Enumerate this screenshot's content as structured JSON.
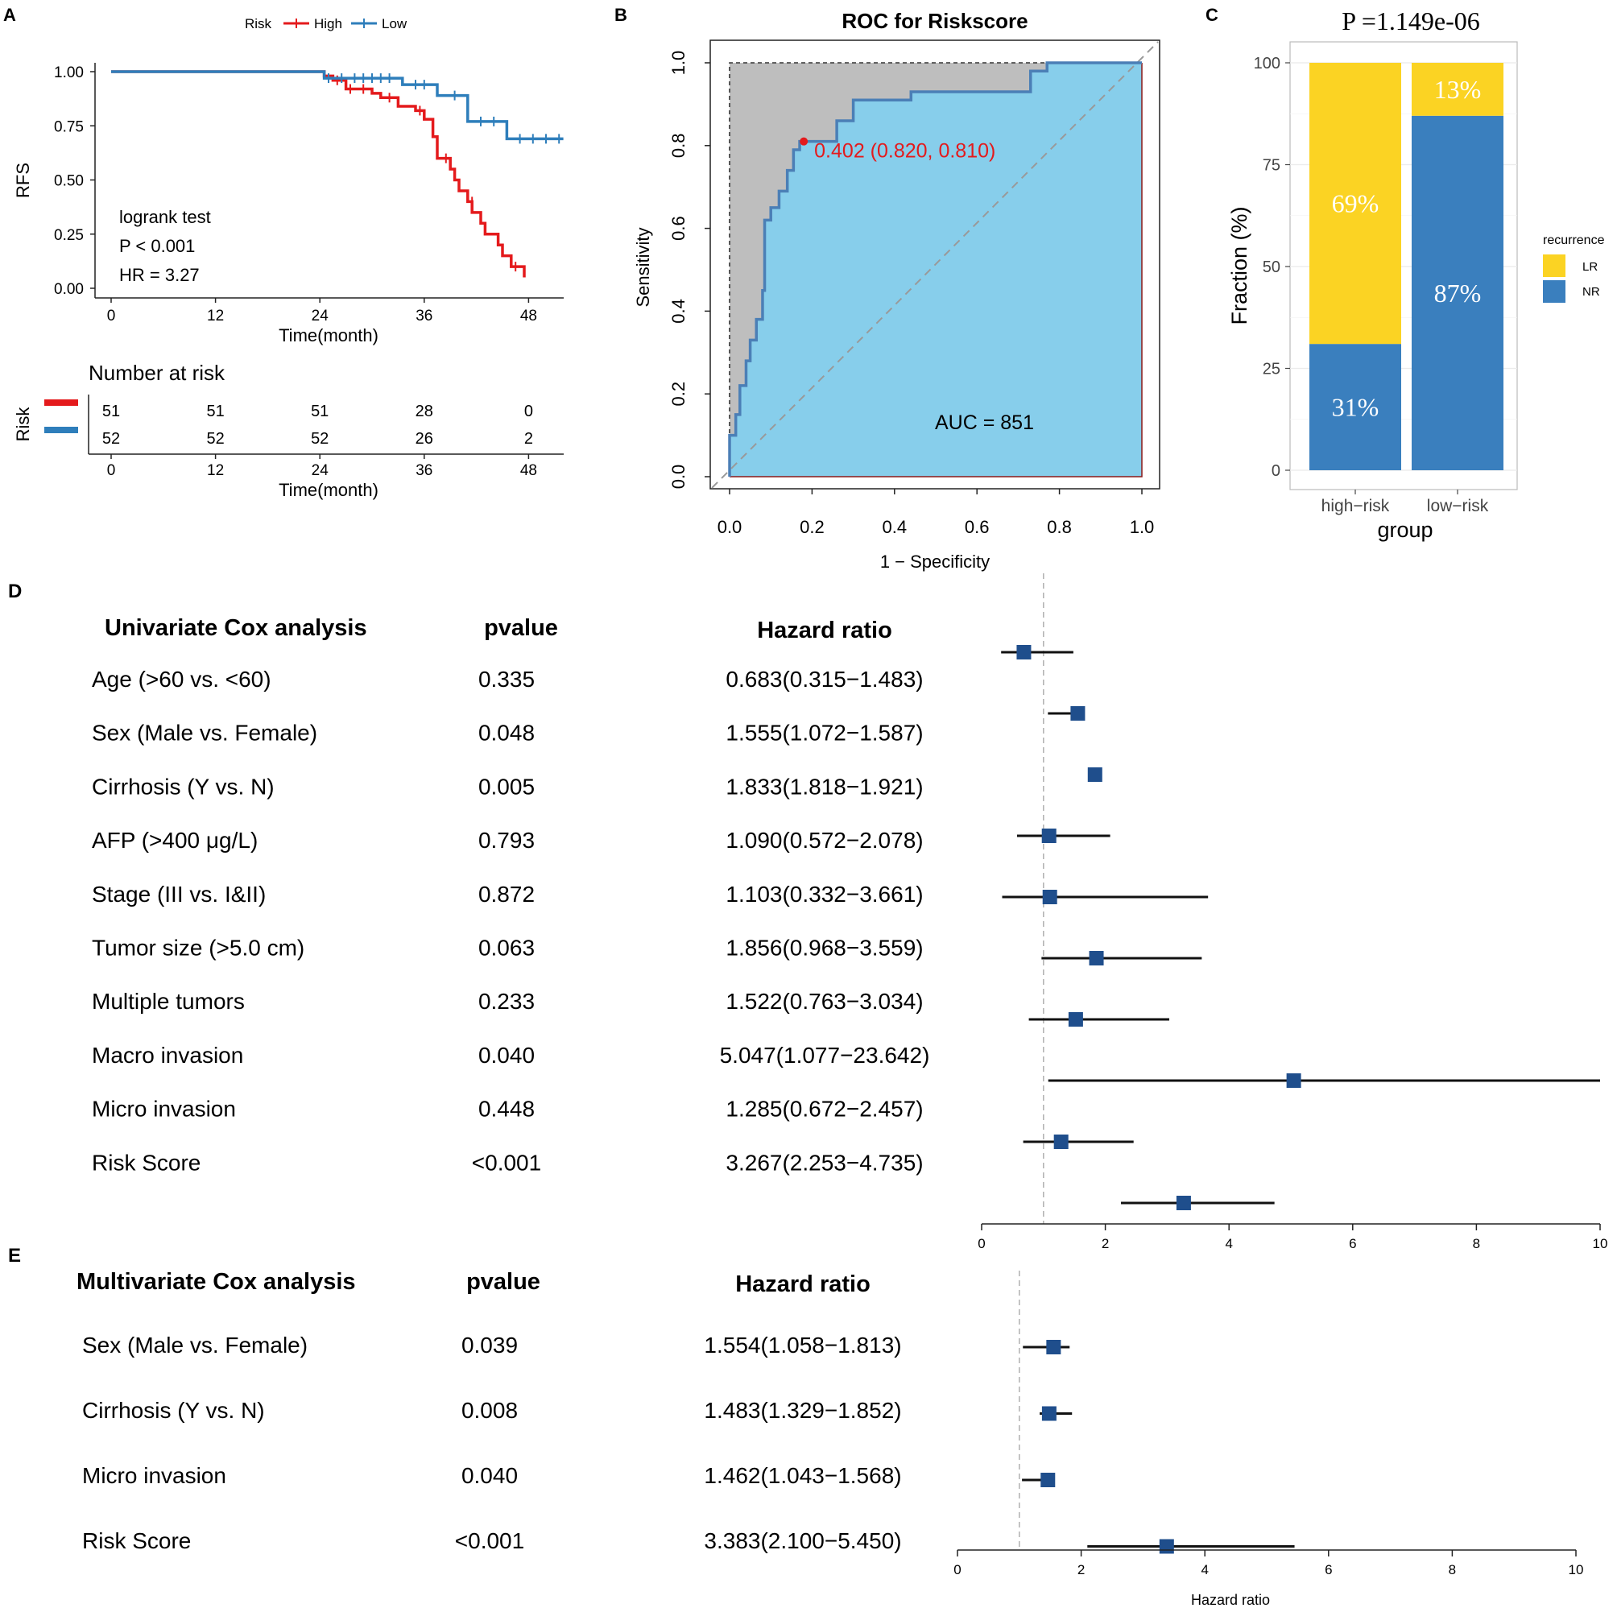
{
  "panels": {
    "A": {
      "letter": "A",
      "legend_title": "Risk",
      "legend_high": "High",
      "legend_low": "Low",
      "ylabel": "RFS",
      "xlabel": "Time(month)",
      "yticks": [
        "1.00",
        "0.75",
        "0.50",
        "0.25",
        "0.00"
      ],
      "xticks": [
        "0",
        "12",
        "24",
        "36",
        "48"
      ],
      "test_label": "logrank test",
      "p_label": "P < 0.001",
      "hr_label": "HR = 3.27",
      "risk_table_title": "Number at risk",
      "risk_table_ylabel": "Risk",
      "risk_high": [
        "51",
        "51",
        "51",
        "28",
        "0"
      ],
      "risk_low": [
        "52",
        "52",
        "52",
        "26",
        "2"
      ],
      "risk_xlabel": "Time(month)",
      "colors": {
        "high": "#e41a1c",
        "low": "#2e7ebb"
      }
    },
    "B": {
      "letter": "B",
      "title": "ROC for Riskscore",
      "xlabel": "1 − Specificity",
      "ylabel": "Sensitivity",
      "ticks": [
        "0.0",
        "0.2",
        "0.4",
        "0.6",
        "0.8",
        "1.0"
      ],
      "cutoff_label": "0.402 (0.820, 0.810)",
      "auc_label": "AUC = 851"
    },
    "C": {
      "letter": "C",
      "title": "P =1.149e-06",
      "ylabel": "Fraction (%)",
      "xlabel": "group",
      "yticks": [
        "100",
        "75",
        "50",
        "25",
        "0"
      ],
      "legend_title": "recurrence",
      "legend_lr": "LR",
      "legend_nr": "NR",
      "colors": {
        "lr": "#fbd323",
        "nr": "#3a7fbe"
      }
    },
    "D": {
      "letter": "D",
      "heading": "Univariate Cox analysis",
      "pvalue_heading": "pvalue",
      "hr_heading": "Hazard ratio",
      "rows": [
        {
          "label": "Age (>60 vs. <60)",
          "pvalue": "0.335",
          "hr_text": "0.683(0.315−1.483)"
        },
        {
          "label": "Sex (Male vs. Female)",
          "pvalue": "0.048",
          "hr_text": "1.555(1.072−1.587)"
        },
        {
          "label": "Cirrhosis (Y vs. N)",
          "pvalue": "0.005",
          "hr_text": "1.833(1.818−1.921)"
        },
        {
          "label": "AFP (>400 μg/L)",
          "pvalue": "0.793",
          "hr_text": "1.090(0.572−2.078)"
        },
        {
          "label": "Stage (III vs. I&II)",
          "pvalue": "0.872",
          "hr_text": "1.103(0.332−3.661)"
        },
        {
          "label": "Tumor size (>5.0 cm)",
          "pvalue": "0.063",
          "hr_text": "1.856(0.968−3.559)"
        },
        {
          "label": "Multiple tumors",
          "pvalue": "0.233",
          "hr_text": "1.522(0.763−3.034)"
        },
        {
          "label": "Macro invasion",
          "pvalue": "0.040",
          "hr_text": "5.047(1.077−23.642)"
        },
        {
          "label": "Micro invasion",
          "pvalue": "0.448",
          "hr_text": "1.285(0.672−2.457)"
        },
        {
          "label": "Risk Score",
          "pvalue": "<0.001",
          "hr_text": "3.267(2.253−4.735)"
        }
      ],
      "axis_ticks": [
        "0",
        "2",
        "4",
        "6",
        "8",
        "10"
      ]
    },
    "E": {
      "letter": "E",
      "heading": "Multivariate Cox analysis",
      "pvalue_heading": "pvalue",
      "hr_heading": "Hazard ratio",
      "rows": [
        {
          "label": "Sex (Male vs. Female)",
          "pvalue": "0.039",
          "hr_text": "1.554(1.058−1.813)"
        },
        {
          "label": "Cirrhosis (Y vs. N)",
          "pvalue": "0.008",
          "hr_text": "1.483(1.329−1.852)"
        },
        {
          "label": "Micro invasion",
          "pvalue": "0.040",
          "hr_text": "1.462(1.043−1.568)"
        },
        {
          "label": "Risk Score",
          "pvalue": "<0.001",
          "hr_text": "3.383(2.100−5.450)"
        }
      ],
      "axis_ticks": [
        "0",
        "2",
        "4",
        "6",
        "8",
        "10"
      ],
      "xlabel": "Hazard ratio"
    }
  },
  "chart_data": [
    {
      "type": "line",
      "title": "",
      "xlabel": "Time(month)",
      "ylabel": "RFS",
      "xlim": [
        0,
        52
      ],
      "ylim": [
        0,
        1
      ],
      "series": [
        {
          "name": "High",
          "color": "#e41a1c",
          "x": [
            0,
            24.5,
            25.5,
            27,
            30,
            31,
            33,
            35,
            36,
            37,
            37.5,
            39,
            39.5,
            40,
            41,
            41.5,
            42.5,
            43,
            44.5,
            45,
            46,
            47.5
          ],
          "y": [
            1.0,
            0.98,
            0.96,
            0.92,
            0.9,
            0.88,
            0.84,
            0.82,
            0.78,
            0.7,
            0.6,
            0.55,
            0.5,
            0.45,
            0.4,
            0.35,
            0.3,
            0.25,
            0.2,
            0.15,
            0.1,
            0.05
          ],
          "censored": [
            [
              26,
              0.96
            ],
            [
              27.5,
              0.92
            ],
            [
              29,
              0.92
            ],
            [
              32,
              0.88
            ],
            [
              35.5,
              0.82
            ],
            [
              38.5,
              0.6
            ],
            [
              41.5,
              0.4
            ],
            [
              46.5,
              0.1
            ]
          ]
        },
        {
          "name": "Low",
          "color": "#2e7ebb",
          "x": [
            0,
            24.5,
            33.5,
            37.5,
            41,
            45.5,
            52
          ],
          "y": [
            1.0,
            0.97,
            0.94,
            0.89,
            0.77,
            0.69,
            0.69
          ],
          "censored": [
            [
              25,
              0.97
            ],
            [
              26.5,
              0.97
            ],
            [
              28,
              0.97
            ],
            [
              29,
              0.97
            ],
            [
              30,
              0.97
            ],
            [
              31,
              0.97
            ],
            [
              32,
              0.97
            ],
            [
              35,
              0.94
            ],
            [
              36,
              0.94
            ],
            [
              39.5,
              0.89
            ],
            [
              42.5,
              0.77
            ],
            [
              44,
              0.77
            ],
            [
              47,
              0.69
            ],
            [
              48.5,
              0.69
            ],
            [
              50,
              0.69
            ],
            [
              51.5,
              0.69
            ]
          ]
        }
      ],
      "risk_table": {
        "times": [
          0,
          12,
          24,
          36,
          48
        ],
        "High": [
          51,
          51,
          51,
          28,
          0
        ],
        "Low": [
          52,
          52,
          52,
          26,
          2
        ]
      }
    },
    {
      "type": "line",
      "title": "ROC for Riskscore",
      "xlabel": "1 - Specificity",
      "ylabel": "Sensitivity",
      "xlim": [
        0,
        1
      ],
      "ylim": [
        0,
        1
      ],
      "series": [
        {
          "name": "ROC",
          "color": "#4b7fb6",
          "x": [
            0,
            0,
            0.015,
            0.015,
            0.025,
            0.025,
            0.04,
            0.04,
            0.05,
            0.05,
            0.065,
            0.065,
            0.08,
            0.08,
            0.085,
            0.085,
            0.1,
            0.1,
            0.12,
            0.12,
            0.14,
            0.14,
            0.155,
            0.155,
            0.17,
            0.17,
            0.18,
            0.18,
            0.26,
            0.26,
            0.3,
            0.3,
            0.44,
            0.44,
            0.73,
            0.73,
            0.77,
            0.77,
            1.0
          ],
          "y": [
            0,
            0.1,
            0.1,
            0.15,
            0.15,
            0.22,
            0.22,
            0.28,
            0.28,
            0.33,
            0.33,
            0.38,
            0.38,
            0.45,
            0.45,
            0.62,
            0.62,
            0.65,
            0.65,
            0.69,
            0.69,
            0.74,
            0.74,
            0.79,
            0.79,
            0.81,
            0.81,
            0.81,
            0.81,
            0.86,
            0.86,
            0.91,
            0.91,
            0.93,
            0.93,
            0.98,
            0.98,
            1.0,
            1.0
          ]
        }
      ],
      "cutoff": {
        "threshold": 0.402,
        "specificity": 0.82,
        "sensitivity": 0.81
      },
      "auc": "851"
    },
    {
      "type": "bar",
      "title": "P =1.149e-06",
      "xlabel": "group",
      "ylabel": "Fraction (%)",
      "categories": [
        "high−risk",
        "low−risk"
      ],
      "series": [
        {
          "name": "NR",
          "values": [
            31,
            87
          ],
          "labels": [
            "31%",
            "87%"
          ]
        },
        {
          "name": "LR",
          "values": [
            69,
            13
          ],
          "labels": [
            "69%",
            "13%"
          ]
        }
      ],
      "ylim": [
        0,
        100
      ],
      "stacked": true
    },
    {
      "type": "scatter",
      "title": "Univariate Cox analysis",
      "xlabel": "",
      "xlim": [
        0,
        10
      ],
      "reference_line": 1,
      "categories": [
        "Age (>60 vs. <60)",
        "Sex (Male vs. Female)",
        "Cirrhosis (Y vs. N)",
        "AFP (>400 μg/L)",
        "Stage (III vs. I&II)",
        "Tumor size (>5.0 cm)",
        "Multiple tumors",
        "Macro invasion",
        "Micro invasion",
        "Risk Score"
      ],
      "hr": [
        0.683,
        1.555,
        1.833,
        1.09,
        1.103,
        1.856,
        1.522,
        5.047,
        1.285,
        3.267
      ],
      "lower": [
        0.315,
        1.072,
        1.818,
        0.572,
        0.332,
        0.968,
        0.763,
        1.077,
        0.672,
        2.253
      ],
      "upper": [
        1.483,
        1.587,
        1.921,
        2.078,
        3.661,
        3.559,
        3.034,
        23.642,
        2.457,
        4.735
      ]
    },
    {
      "type": "scatter",
      "title": "Multivariate Cox analysis",
      "xlabel": "Hazard ratio",
      "xlim": [
        0,
        10
      ],
      "reference_line": 1,
      "categories": [
        "Sex (Male vs. Female)",
        "Cirrhosis (Y vs. N)",
        "Micro invasion",
        "Risk Score"
      ],
      "hr": [
        1.554,
        1.483,
        1.462,
        3.383
      ],
      "lower": [
        1.058,
        1.329,
        1.043,
        2.1
      ],
      "upper": [
        1.813,
        1.852,
        1.568,
        5.45
      ]
    }
  ]
}
